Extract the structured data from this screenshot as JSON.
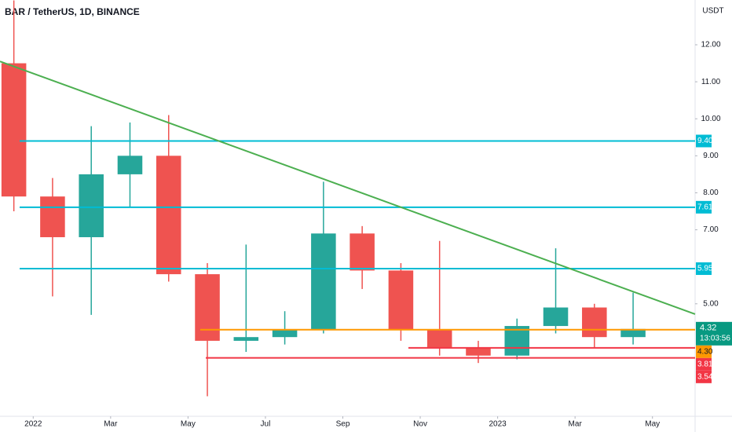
{
  "chart_data": {
    "type": "candlestick",
    "title": "BAR / TetherUS, 1D, BINANCE",
    "currency": "USDT",
    "x": [
      "2021-12",
      "2022-01",
      "2022-02",
      "2022-03",
      "2022-04",
      "2022-05",
      "2022-06",
      "2022-07",
      "2022-08",
      "2022-09",
      "2022-10",
      "2022-11",
      "2022-12",
      "2023-01",
      "2023-02",
      "2023-03",
      "2023-04"
    ],
    "open": [
      11.5,
      7.9,
      6.8,
      8.5,
      9.0,
      5.8,
      4.0,
      4.1,
      4.3,
      6.9,
      5.9,
      4.3,
      3.8,
      3.6,
      4.4,
      4.9,
      4.1
    ],
    "high": [
      13.2,
      8.4,
      9.8,
      9.9,
      10.1,
      6.1,
      6.6,
      4.8,
      8.3,
      7.1,
      6.1,
      6.7,
      4.0,
      4.6,
      6.5,
      5.0,
      5.3
    ],
    "low": [
      7.5,
      5.2,
      4.7,
      7.6,
      5.6,
      2.5,
      3.7,
      3.9,
      4.2,
      5.4,
      4.0,
      3.6,
      3.4,
      3.5,
      4.2,
      3.8,
      3.9
    ],
    "close": [
      7.9,
      6.8,
      8.5,
      9.0,
      5.8,
      4.0,
      4.1,
      4.3,
      6.9,
      5.9,
      4.3,
      3.8,
      3.6,
      4.4,
      4.9,
      4.1,
      4.32
    ],
    "up_color": "#26a69a",
    "down_color": "#ef5350",
    "xlim": [
      "2021-12",
      "2023-06"
    ],
    "ylim": [
      1.96,
      13.21
    ],
    "xticks": [
      {
        "value": "2022-01",
        "label": "2022"
      },
      {
        "value": "2022-03",
        "label": "Mar"
      },
      {
        "value": "2022-05",
        "label": "May"
      },
      {
        "value": "2022-07",
        "label": "Jul"
      },
      {
        "value": "2022-09",
        "label": "Sep"
      },
      {
        "value": "2022-11",
        "label": "Nov"
      },
      {
        "value": "2023-01",
        "label": "2023"
      },
      {
        "value": "2023-03",
        "label": "Mar"
      },
      {
        "value": "2023-05",
        "label": "May"
      }
    ],
    "yticks": [
      {
        "value": 12,
        "label": "12.00"
      },
      {
        "value": 11,
        "label": "11.00"
      },
      {
        "value": 10,
        "label": "10.00"
      },
      {
        "value": 9,
        "label": "9.00"
      },
      {
        "value": 8,
        "label": "8.00"
      },
      {
        "value": 7,
        "label": "7.00"
      },
      {
        "value": 5,
        "label": "5.00"
      }
    ],
    "trendline": {
      "values": [
        11.55,
        4.72
      ],
      "color": "#4caf50"
    },
    "levels": [
      {
        "value": 9.4,
        "label": "9.40",
        "color": "#00bcd4"
      },
      {
        "value": 7.61,
        "label": "7.61",
        "color": "#00bcd4"
      },
      {
        "value": 5.95,
        "label": "5.95",
        "color": "#00bcd4"
      },
      {
        "value": 4.3,
        "label": "4.30",
        "color": "#ff9800"
      },
      {
        "value": 3.81,
        "label": "3.81",
        "color": "#f23645"
      },
      {
        "value": 3.54,
        "label": "3.54",
        "color": "#f23645"
      }
    ],
    "countdown": "13:03:56",
    "last_color": "#089981"
  }
}
